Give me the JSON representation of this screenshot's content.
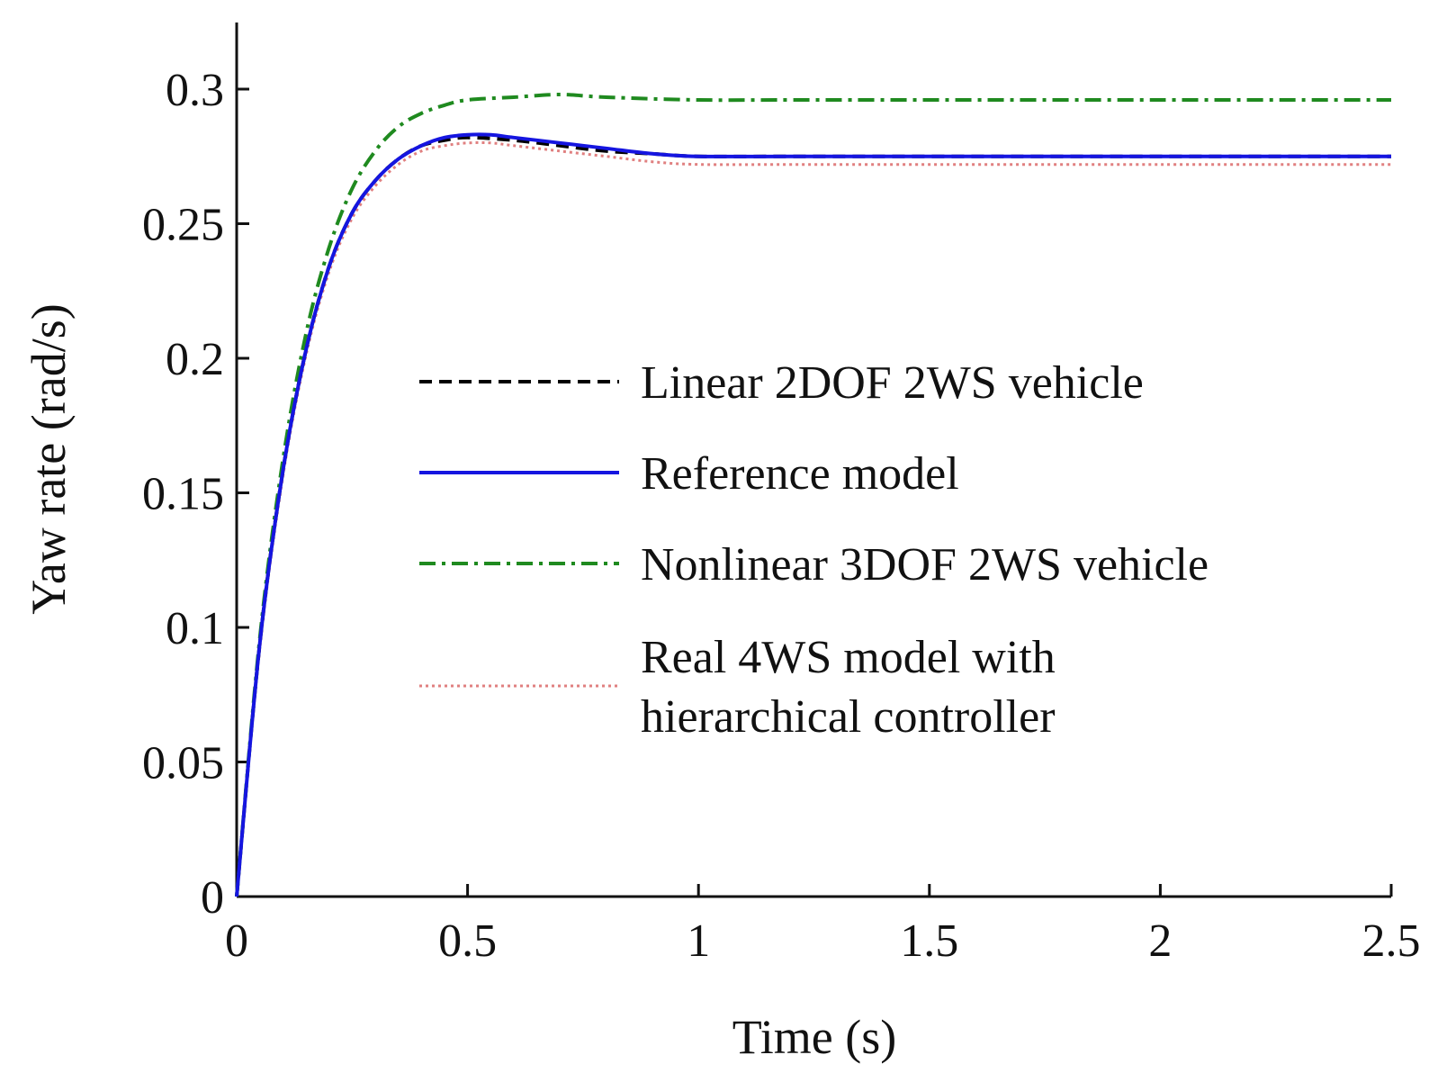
{
  "chart_data": {
    "type": "line",
    "title": "",
    "xlabel": "Time (s)",
    "ylabel": "Yaw rate (rad/s)",
    "xlim": [
      0,
      2.5
    ],
    "ylim": [
      0,
      0.3
    ],
    "xticks": [
      0,
      0.5,
      1,
      1.5,
      2,
      2.5
    ],
    "xtick_labels": [
      "0",
      "0.5",
      "1",
      "1.5",
      "2",
      "2.5"
    ],
    "yticks": [
      0,
      0.05,
      0.1,
      0.15,
      0.2,
      0.25,
      0.3
    ],
    "ytick_labels": [
      "0",
      "0.05",
      "0.1",
      "0.15",
      "0.2",
      "0.25",
      "0.3"
    ],
    "grid": false,
    "legend_position": "center-right",
    "series": [
      {
        "name": "Linear 2DOF 2WS vehicle",
        "color": "#000000",
        "dash": "dashed",
        "x": [
          0,
          0.05,
          0.1,
          0.15,
          0.2,
          0.25,
          0.3,
          0.35,
          0.4,
          0.45,
          0.5,
          0.6,
          0.7,
          0.8,
          0.9,
          1.0,
          1.2,
          1.5,
          2.0,
          2.5
        ],
        "y": [
          0,
          0.094,
          0.158,
          0.203,
          0.234,
          0.254,
          0.266,
          0.274,
          0.279,
          0.281,
          0.282,
          0.281,
          0.279,
          0.277,
          0.276,
          0.275,
          0.275,
          0.275,
          0.275,
          0.275
        ]
      },
      {
        "name": "Reference model",
        "color": "#1515e0",
        "dash": "solid",
        "x": [
          0,
          0.05,
          0.1,
          0.15,
          0.2,
          0.25,
          0.3,
          0.35,
          0.4,
          0.45,
          0.5,
          0.55,
          0.6,
          0.7,
          0.8,
          0.9,
          1.0,
          1.2,
          1.5,
          2.0,
          2.5
        ],
        "y": [
          0,
          0.094,
          0.158,
          0.203,
          0.234,
          0.254,
          0.266,
          0.274,
          0.279,
          0.282,
          0.283,
          0.283,
          0.282,
          0.28,
          0.278,
          0.276,
          0.275,
          0.275,
          0.275,
          0.275,
          0.275
        ]
      },
      {
        "name": "Nonlinear 3DOF 2WS vehicle",
        "color": "#1f8a1f",
        "dash": "dashdot",
        "x": [
          0,
          0.05,
          0.1,
          0.15,
          0.2,
          0.25,
          0.3,
          0.35,
          0.4,
          0.45,
          0.5,
          0.6,
          0.7,
          0.8,
          1.0,
          1.2,
          1.5,
          2.0,
          2.5
        ],
        "y": [
          0,
          0.096,
          0.162,
          0.209,
          0.241,
          0.263,
          0.277,
          0.286,
          0.291,
          0.294,
          0.296,
          0.297,
          0.298,
          0.297,
          0.296,
          0.296,
          0.296,
          0.296,
          0.296
        ]
      },
      {
        "name": "Real 4WS model with hierarchical controller",
        "color": "#e08080",
        "dash": "dotted",
        "x": [
          0,
          0.05,
          0.1,
          0.15,
          0.2,
          0.25,
          0.3,
          0.35,
          0.4,
          0.45,
          0.5,
          0.55,
          0.6,
          0.7,
          0.8,
          0.9,
          1.0,
          1.2,
          1.5,
          2.0,
          2.5
        ],
        "y": [
          0,
          0.092,
          0.156,
          0.201,
          0.232,
          0.252,
          0.264,
          0.272,
          0.277,
          0.279,
          0.28,
          0.28,
          0.279,
          0.277,
          0.275,
          0.273,
          0.272,
          0.272,
          0.272,
          0.272,
          0.272
        ]
      }
    ],
    "legend_lines": [
      [
        "Linear 2DOF 2WS vehicle"
      ],
      [
        "Reference model"
      ],
      [
        "Nonlinear 3DOF 2WS vehicle"
      ],
      [
        "Real 4WS model with",
        "hierarchical controller"
      ]
    ]
  }
}
